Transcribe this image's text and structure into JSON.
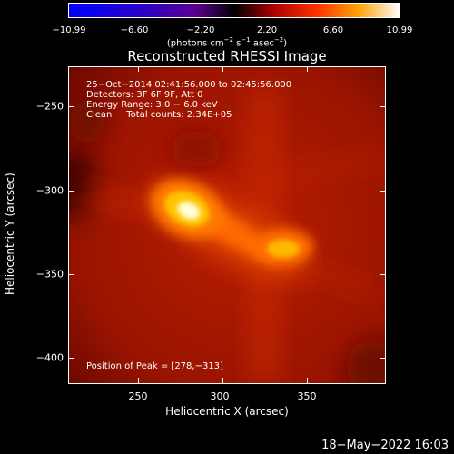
{
  "colorbar": {
    "tick_labels": [
      "−10.99",
      "−6.60",
      "−2.20",
      "2.20",
      "6.60",
      "10.99"
    ],
    "unit_text": "(photons cm",
    "unit_exp1": "−2",
    "unit_mid": " s",
    "unit_exp2": "−1",
    "unit_mid2": " asec",
    "unit_exp3": "−2",
    "unit_end": ")"
  },
  "title": "Reconstructed RHESSI Image",
  "info": {
    "time_range": "25−Oct−2014 02:41:56.000 to 02:45:56.000",
    "detectors": "Detectors: 3F 6F 9F, Att 0",
    "energy": "Energy Range: 3.0 − 6.0 keV",
    "clean": "Clean     Total counts: 2.34E+05",
    "peak": "Position of Peak = [278,−313]"
  },
  "axes": {
    "xlabel": "Heliocentric X (arcsec)",
    "ylabel": "Heliocentric Y (arcsec)",
    "xticks": [
      "250",
      "300",
      "350"
    ],
    "yticks": [
      "−250",
      "−300",
      "−350",
      "−400"
    ]
  },
  "timestamp": "18−May−2022 16:03",
  "colors": {
    "background": "#000000",
    "image_base": "#b31a00",
    "peak_core": "#ffffe0"
  }
}
